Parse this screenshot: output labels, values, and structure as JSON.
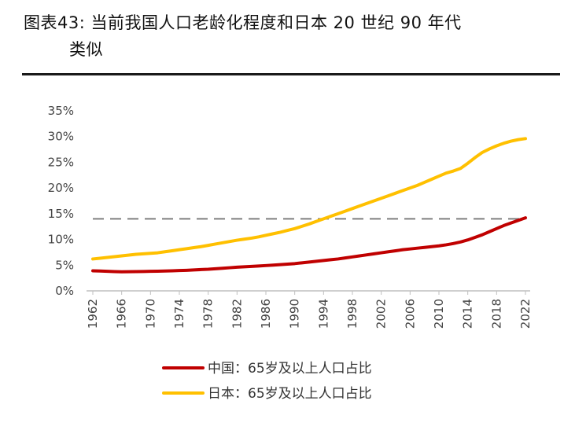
{
  "title_line1": "图表43: 当前我国人口老龄化程度和日本 20 世纪 90 年代",
  "title_line2": "类似",
  "chart_data": {
    "type": "line",
    "x": [
      1962,
      1963,
      1964,
      1965,
      1966,
      1967,
      1968,
      1969,
      1970,
      1971,
      1972,
      1973,
      1974,
      1975,
      1976,
      1977,
      1978,
      1979,
      1980,
      1981,
      1982,
      1983,
      1984,
      1985,
      1986,
      1987,
      1988,
      1989,
      1990,
      1991,
      1992,
      1993,
      1994,
      1995,
      1996,
      1997,
      1998,
      1999,
      2000,
      2001,
      2002,
      2003,
      2004,
      2005,
      2006,
      2007,
      2008,
      2009,
      2010,
      2011,
      2012,
      2013,
      2014,
      2015,
      2016,
      2017,
      2018,
      2019,
      2020,
      2021,
      2022
    ],
    "series": [
      {
        "name": "中国：65岁及以上人口占比",
        "color": "#c00000",
        "values": [
          3.9,
          3.85,
          3.8,
          3.75,
          3.7,
          3.72,
          3.74,
          3.76,
          3.8,
          3.83,
          3.86,
          3.9,
          3.95,
          4.0,
          4.07,
          4.14,
          4.2,
          4.3,
          4.4,
          4.5,
          4.6,
          4.68,
          4.76,
          4.84,
          4.92,
          5.0,
          5.1,
          5.2,
          5.3,
          5.45,
          5.6,
          5.75,
          5.9,
          6.05,
          6.2,
          6.4,
          6.6,
          6.8,
          7.0,
          7.2,
          7.4,
          7.6,
          7.8,
          8.0,
          8.15,
          8.3,
          8.45,
          8.6,
          8.75,
          8.95,
          9.2,
          9.5,
          9.9,
          10.4,
          10.9,
          11.5,
          12.1,
          12.7,
          13.2,
          13.7,
          14.2
        ]
      },
      {
        "name": "日本：65岁及以上人口占比",
        "color": "#ffc000",
        "values": [
          6.2,
          6.35,
          6.5,
          6.65,
          6.8,
          6.95,
          7.1,
          7.2,
          7.3,
          7.4,
          7.6,
          7.8,
          8.0,
          8.2,
          8.4,
          8.6,
          8.85,
          9.1,
          9.35,
          9.6,
          9.85,
          10.05,
          10.25,
          10.5,
          10.8,
          11.1,
          11.4,
          11.75,
          12.1,
          12.55,
          13.0,
          13.5,
          14.0,
          14.5,
          15.0,
          15.5,
          16.0,
          16.5,
          17.0,
          17.5,
          18.0,
          18.5,
          19.0,
          19.5,
          20.0,
          20.5,
          21.1,
          21.7,
          22.3,
          22.9,
          23.3,
          23.8,
          24.8,
          25.9,
          26.9,
          27.6,
          28.2,
          28.7,
          29.1,
          29.4,
          29.6
        ]
      }
    ],
    "reference_line": {
      "value": 14,
      "style": "dashed",
      "color": "#7f7f7f"
    },
    "xticks": [
      "1962",
      "1966",
      "1970",
      "1974",
      "1978",
      "1982",
      "1986",
      "1990",
      "1994",
      "1998",
      "2002",
      "2006",
      "2010",
      "2014",
      "2018",
      "2022"
    ],
    "yticks": [
      "0%",
      "5%",
      "10%",
      "15%",
      "20%",
      "25%",
      "30%",
      "35%"
    ],
    "ylim": [
      0,
      35
    ],
    "xlim": [
      1962,
      2022
    ],
    "legend_position": "bottom",
    "grid": false
  }
}
